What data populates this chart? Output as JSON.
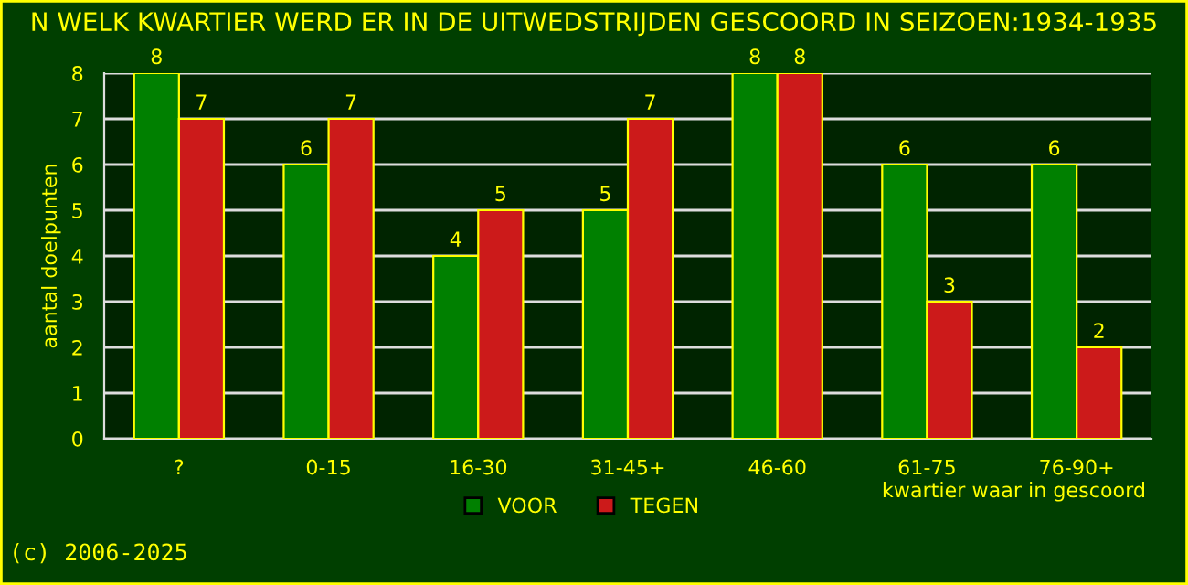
{
  "chart_data": {
    "type": "bar",
    "title": "N WELK KWARTIER WERD ER IN DE UITWEDSTRIJDEN GESCOORD IN SEIZOEN:1934-1935",
    "xlabel": "kwartier waar in gescoord",
    "ylabel": "aantal doelpunten",
    "categories": [
      "?",
      "0-15",
      "16-30",
      "31-45+",
      "46-60",
      "61-75",
      "76-90+"
    ],
    "series": [
      {
        "name": "VOOR",
        "color": "#008000",
        "values": [
          8,
          6,
          4,
          5,
          8,
          6,
          6
        ]
      },
      {
        "name": "TEGEN",
        "color": "#cc1a1a",
        "values": [
          7,
          7,
          5,
          7,
          8,
          3,
          2
        ]
      }
    ],
    "ylim": [
      0,
      8
    ],
    "yticks": [
      0,
      1,
      2,
      3,
      4,
      5,
      6,
      7,
      8
    ],
    "grid": "y",
    "legend": "bottom",
    "data_labels": true,
    "annotations": [
      "(c) 2006-2025"
    ]
  }
}
